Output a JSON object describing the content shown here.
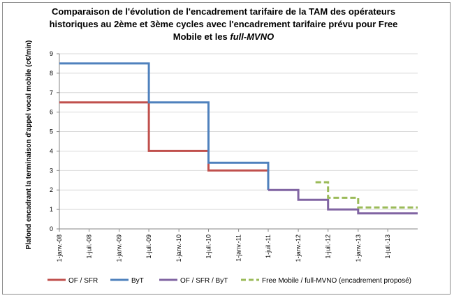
{
  "chart_data": {
    "type": "line",
    "title_line1": "Comparaison  de l'évolution de l'encadrement tarifaire de la TAM des opérateurs",
    "title_line2": "historiques au 2ème et 3ème cycles avec l'encadrement tarifaire prévu pour Free",
    "title_line3_prefix": "Mobile  et les ",
    "title_line3_italic": "full-MVNO",
    "ylabel": "Plafond encadrant la terminaison d'appel vocal mobile (c€/min)",
    "ylim": [
      0,
      9
    ],
    "yticks": [
      "0",
      "1",
      "2",
      "3",
      "4",
      "5",
      "6",
      "7",
      "8",
      "9"
    ],
    "xlim": [
      "2008-01-01",
      "2013-12-31"
    ],
    "xticks": [
      {
        "date": "2008-01-01",
        "label": "1-janv.-08"
      },
      {
        "date": "2008-07-01",
        "label": "1-juil.-08"
      },
      {
        "date": "2009-01-01",
        "label": "1-janv.-09"
      },
      {
        "date": "2009-07-01",
        "label": "1-juil.-09"
      },
      {
        "date": "2010-01-01",
        "label": "1-janv.-10"
      },
      {
        "date": "2010-07-01",
        "label": "1-juil.-10"
      },
      {
        "date": "2011-01-01",
        "label": "1-janv.-11"
      },
      {
        "date": "2011-07-01",
        "label": "1-juil.-11"
      },
      {
        "date": "2012-01-01",
        "label": "1-janv.-12"
      },
      {
        "date": "2012-07-01",
        "label": "1-juil.-12"
      },
      {
        "date": "2013-01-01",
        "label": "1-janv.-13"
      },
      {
        "date": "2013-07-01",
        "label": "1-juil.-13"
      }
    ],
    "grid": true,
    "legend_position": "bottom",
    "series": [
      {
        "name": "OF / SFR",
        "color": "#c0504d",
        "dash": false,
        "points": [
          {
            "x": "2008-01-01",
            "y": 6.5
          },
          {
            "x": "2009-07-01",
            "y": 6.5
          },
          {
            "x": "2009-07-01",
            "y": 4
          },
          {
            "x": "2010-07-01",
            "y": 4
          },
          {
            "x": "2010-07-01",
            "y": 3
          },
          {
            "x": "2011-07-01",
            "y": 3
          }
        ]
      },
      {
        "name": "ByT",
        "color": "#4f81bd",
        "dash": false,
        "points": [
          {
            "x": "2008-01-01",
            "y": 8.5
          },
          {
            "x": "2009-07-01",
            "y": 8.5
          },
          {
            "x": "2009-07-01",
            "y": 6.5
          },
          {
            "x": "2010-07-01",
            "y": 6.5
          },
          {
            "x": "2010-07-01",
            "y": 3.4
          },
          {
            "x": "2011-07-01",
            "y": 3.4
          },
          {
            "x": "2011-07-01",
            "y": 2
          }
        ]
      },
      {
        "name": "OF / SFR / ByT",
        "color": "#8064a2",
        "dash": false,
        "points": [
          {
            "x": "2011-07-01",
            "y": 2
          },
          {
            "x": "2012-01-01",
            "y": 2
          },
          {
            "x": "2012-01-01",
            "y": 1.5
          },
          {
            "x": "2012-07-01",
            "y": 1.5
          },
          {
            "x": "2012-07-01",
            "y": 1
          },
          {
            "x": "2013-01-01",
            "y": 1
          },
          {
            "x": "2013-01-01",
            "y": 0.8
          },
          {
            "x": "2013-12-31",
            "y": 0.8
          }
        ]
      },
      {
        "name": "Free Mobile / full-MVNO (encadrement proposé)",
        "color": "#9bbb59",
        "dash": true,
        "points": [
          {
            "x": "2012-04-15",
            "y": 2.4
          },
          {
            "x": "2012-07-01",
            "y": 2.4
          },
          {
            "x": "2012-07-01",
            "y": 1.6
          },
          {
            "x": "2013-01-01",
            "y": 1.6
          },
          {
            "x": "2013-01-01",
            "y": 1.1
          },
          {
            "x": "2013-12-31",
            "y": 1.1
          }
        ]
      }
    ]
  }
}
